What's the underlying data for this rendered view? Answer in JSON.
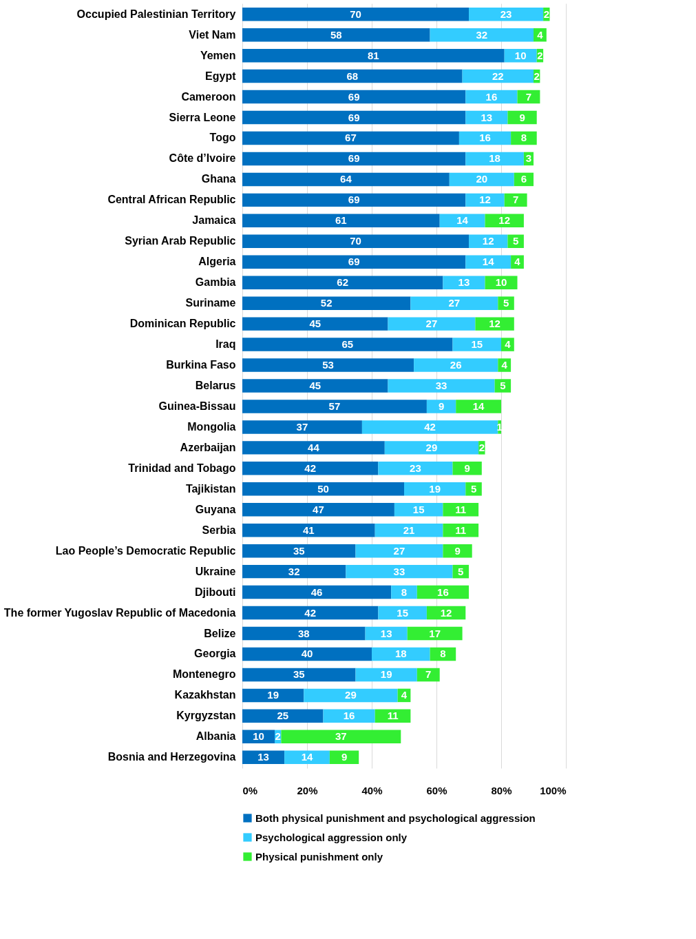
{
  "chart_data": {
    "type": "bar",
    "orientation": "horizontal",
    "stacked": true,
    "data_labels": true,
    "grid": "x",
    "legend": "bottom",
    "categories": [
      "Occupied Palestinian Territory",
      "Viet Nam",
      "Yemen",
      "Egypt",
      "Cameroon",
      "Sierra Leone",
      "Togo",
      "Côte d’Ivoire",
      "Ghana",
      "Central African Republic",
      "Jamaica",
      "Syrian Arab Republic",
      "Algeria",
      "Gambia",
      "Suriname",
      "Dominican Republic",
      "Iraq",
      "Burkina Faso",
      "Belarus",
      "Guinea-Bissau",
      "Mongolia",
      "Azerbaijan",
      "Trinidad and Tobago",
      "Tajikistan",
      "Guyana",
      "Serbia",
      "Lao People’s Democratic Republic",
      "Ukraine",
      "Djibouti",
      "The former Yugoslav Republic of Macedonia",
      "Belize",
      "Georgia",
      "Montenegro",
      "Kazakhstan",
      "Kyrgyzstan",
      "Albania",
      "Bosnia and Herzegovina"
    ],
    "series": [
      {
        "name": "Both physical punishment and psychological aggression",
        "color": "#0070c0",
        "values": [
          70,
          58,
          81,
          68,
          69,
          69,
          67,
          69,
          64,
          69,
          61,
          70,
          69,
          62,
          52,
          45,
          65,
          53,
          45,
          57,
          37,
          44,
          42,
          50,
          47,
          41,
          35,
          32,
          46,
          42,
          38,
          40,
          35,
          19,
          25,
          10,
          13
        ]
      },
      {
        "name": "Psychological aggression only",
        "color": "#33ccff",
        "values": [
          23,
          32,
          10,
          22,
          16,
          13,
          16,
          18,
          20,
          12,
          14,
          12,
          14,
          13,
          27,
          27,
          15,
          26,
          33,
          9,
          42,
          29,
          23,
          19,
          15,
          21,
          27,
          33,
          8,
          15,
          13,
          18,
          19,
          29,
          16,
          2,
          14
        ]
      },
      {
        "name": "Physical punishment only",
        "color": "#33ee33",
        "values": [
          2,
          4,
          2,
          2,
          7,
          9,
          8,
          3,
          6,
          7,
          12,
          5,
          4,
          10,
          5,
          12,
          4,
          4,
          5,
          14,
          1,
          2,
          9,
          5,
          11,
          11,
          9,
          5,
          16,
          12,
          17,
          8,
          7,
          4,
          11,
          37,
          9
        ]
      }
    ],
    "xlim": [
      0,
      100
    ],
    "xticks": [
      {
        "value": 0,
        "label": "0%"
      },
      {
        "value": 20,
        "label": "20%"
      },
      {
        "value": 40,
        "label": "40%"
      },
      {
        "value": 60,
        "label": "60%"
      },
      {
        "value": 80,
        "label": "80%"
      },
      {
        "value": 100,
        "label": "100%"
      }
    ]
  }
}
